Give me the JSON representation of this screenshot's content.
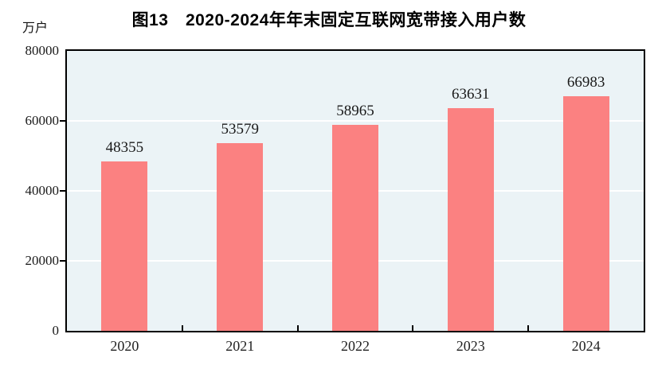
{
  "chart_data": {
    "type": "bar",
    "title": "图13　2020-2024年年末固定互联网宽带接入用户数",
    "unit_label": "万户",
    "categories": [
      "2020",
      "2021",
      "2022",
      "2023",
      "2024"
    ],
    "values": [
      48355,
      53579,
      58965,
      63631,
      66983
    ],
    "value_labels": [
      "48355",
      "53579",
      "58965",
      "63631",
      "66983"
    ],
    "xlabel": "",
    "ylabel": "万户",
    "ylim": [
      0,
      80000
    ],
    "yticks": [
      0,
      20000,
      40000,
      60000,
      80000
    ],
    "ytick_labels": [
      "0",
      "20000",
      "40000",
      "60000",
      "80000"
    ],
    "legend": "none",
    "grid": "horizontal",
    "colors": {
      "bar_fill": "#FB8181",
      "plot_background": "#EBF3F6",
      "gridline": "#FFFFFF",
      "axis_frame": "#000000",
      "text": "#1a1a1a"
    }
  }
}
